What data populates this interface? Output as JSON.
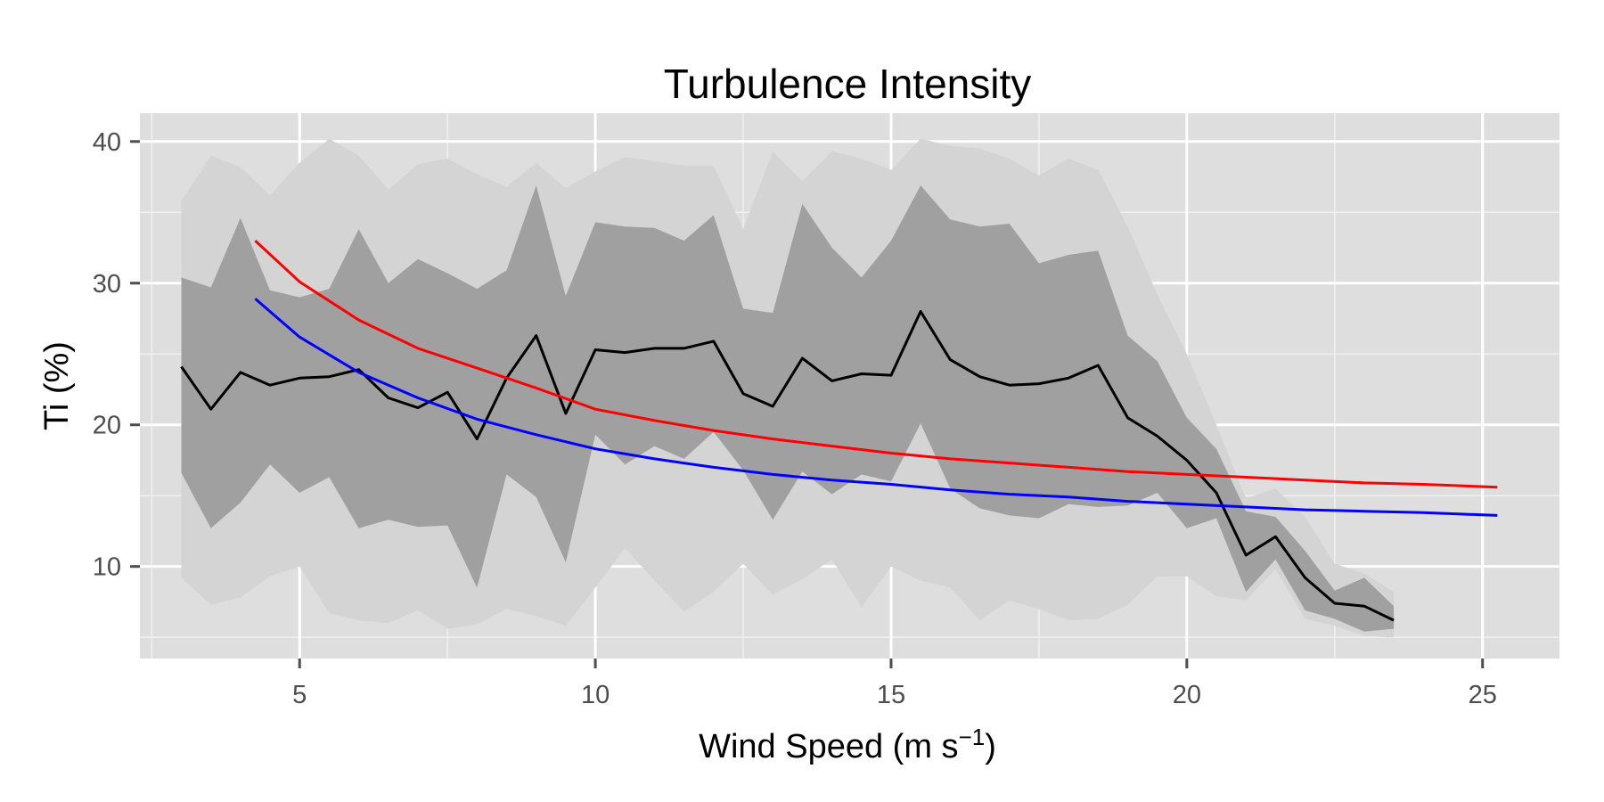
{
  "chart_data": {
    "type": "line",
    "title": "Turbulence Intensity",
    "xlabel": "Wind Speed (m s",
    "xlabel_superscript": "−1",
    "xlabel_suffix": ")",
    "ylabel": "Ti (%)",
    "xlim": [
      2.3,
      26.3
    ],
    "ylim": [
      3.5,
      42
    ],
    "x_ticks": [
      5,
      10,
      15,
      20,
      25
    ],
    "x_tick_labels": [
      "5",
      "10",
      "15",
      "20",
      "25"
    ],
    "y_ticks": [
      10,
      20,
      30,
      40
    ],
    "y_tick_labels": [
      "10",
      "20",
      "30",
      "40"
    ],
    "grid": true,
    "legend": "none",
    "colors": {
      "panel": "#dedede",
      "outer_band": "#d4d4d4",
      "inner_band": "#a0a0a0",
      "mean": "#000000",
      "red_curve": "#ff0000",
      "blue_curve": "#0000ff",
      "grid_major": "#ffffff",
      "grid_minor": "#f0f0f0",
      "tick": "#4d4d4d"
    },
    "bands": {
      "x": [
        3,
        3.5,
        4,
        4.5,
        5,
        5.5,
        6,
        6.5,
        7,
        7.5,
        8,
        8.5,
        9,
        9.5,
        10,
        10.5,
        11,
        11.5,
        12,
        12.5,
        13,
        13.5,
        14,
        14.5,
        15,
        15.5,
        16,
        16.5,
        17,
        17.5,
        18,
        18.5,
        19,
        19.5,
        20,
        20.5,
        21,
        21.5,
        22,
        22.5,
        23,
        23.5
      ],
      "outer_upper": [
        35.8,
        39.0,
        38.2,
        36.2,
        38.5,
        40.2,
        39.0,
        36.6,
        38.4,
        38.8,
        37.7,
        36.8,
        38.5,
        36.7,
        37.9,
        38.9,
        38.6,
        38.3,
        38.3,
        33.8,
        39.3,
        37.2,
        39.3,
        38.8,
        38.0,
        40.2,
        39.7,
        39.5,
        38.8,
        37.6,
        38.8,
        38.0,
        34.0,
        29.2,
        25.0,
        20.0,
        14.8,
        15.5,
        13.5,
        10.2,
        9.5,
        8.2
      ],
      "outer_lower": [
        9.2,
        7.3,
        7.8,
        9.3,
        10.0,
        6.7,
        6.2,
        6.0,
        6.9,
        5.6,
        5.9,
        7.0,
        6.5,
        5.8,
        8.5,
        11.3,
        9.0,
        6.8,
        8.2,
        10.2,
        8.0,
        9.1,
        10.5,
        7.1,
        10.0,
        9.0,
        8.5,
        6.2,
        7.6,
        7.0,
        6.2,
        6.3,
        7.3,
        9.3,
        9.3,
        7.9,
        7.6,
        9.8,
        6.3,
        5.8,
        5.1,
        5.0
      ],
      "inner_upper": [
        30.4,
        29.7,
        34.6,
        29.5,
        29.0,
        29.6,
        33.8,
        30.0,
        31.7,
        30.7,
        29.6,
        30.9,
        36.9,
        29.1,
        34.3,
        34.0,
        33.9,
        33.0,
        34.8,
        28.2,
        27.9,
        35.6,
        32.5,
        30.4,
        33.0,
        36.9,
        34.5,
        34.0,
        34.2,
        31.4,
        32.0,
        32.3,
        26.3,
        24.5,
        20.5,
        18.3,
        13.9,
        13.5,
        11.1,
        8.3,
        9.2,
        7.2
      ],
      "inner_lower": [
        16.6,
        12.7,
        14.5,
        17.2,
        15.2,
        16.3,
        12.7,
        13.3,
        12.8,
        12.9,
        8.5,
        16.5,
        14.9,
        10.3,
        19.3,
        17.2,
        18.5,
        17.6,
        19.5,
        16.8,
        13.3,
        16.7,
        15.1,
        16.5,
        16.0,
        20.1,
        15.5,
        14.1,
        13.6,
        13.4,
        14.4,
        14.2,
        14.3,
        15.2,
        12.7,
        13.4,
        8.2,
        10.5,
        6.9,
        6.3,
        5.4,
        5.6
      ]
    },
    "series": [
      {
        "color": "#000000",
        "x": [
          3,
          3.5,
          4,
          4.5,
          5,
          5.5,
          6,
          6.5,
          7,
          7.5,
          8,
          8.5,
          9,
          9.5,
          10,
          10.5,
          11,
          11.5,
          12,
          12.5,
          13,
          13.5,
          14,
          14.5,
          15,
          15.5,
          16,
          16.5,
          17,
          17.5,
          18,
          18.5,
          19,
          19.5,
          20,
          20.5,
          21,
          21.5,
          22,
          22.5,
          23,
          23.5
        ],
        "values": [
          24.1,
          21.1,
          23.7,
          22.8,
          23.3,
          23.4,
          23.9,
          21.9,
          21.2,
          22.3,
          19.0,
          23.3,
          26.3,
          20.8,
          25.3,
          25.1,
          25.4,
          25.4,
          25.9,
          22.2,
          21.3,
          24.7,
          23.1,
          23.6,
          23.5,
          28.0,
          24.6,
          23.4,
          22.8,
          22.9,
          23.3,
          24.2,
          20.5,
          19.2,
          17.5,
          15.2,
          10.8,
          12.1,
          9.2,
          7.4,
          7.2,
          6.2
        ]
      },
      {
        "color": "#ff0000",
        "x": [
          4.25,
          5,
          6,
          7,
          8,
          9,
          10,
          11,
          12,
          13,
          14,
          15,
          16,
          17,
          18,
          19,
          20,
          21,
          22,
          23,
          24,
          25.25
        ],
        "values": [
          33.0,
          30.1,
          27.4,
          25.4,
          24.0,
          22.6,
          21.1,
          20.3,
          19.6,
          19.0,
          18.5,
          18.0,
          17.6,
          17.3,
          17.0,
          16.7,
          16.5,
          16.3,
          16.1,
          15.9,
          15.8,
          15.6
        ]
      },
      {
        "color": "#0000ff",
        "x": [
          4.25,
          5,
          6,
          7,
          8,
          9,
          10,
          11,
          12,
          13,
          14,
          15,
          16,
          17,
          18,
          19,
          20,
          21,
          22,
          23,
          24,
          25.25
        ],
        "values": [
          28.9,
          26.2,
          23.7,
          21.9,
          20.4,
          19.3,
          18.3,
          17.6,
          17.0,
          16.5,
          16.1,
          15.8,
          15.4,
          15.1,
          14.9,
          14.6,
          14.4,
          14.2,
          14.0,
          13.9,
          13.8,
          13.6
        ]
      }
    ]
  }
}
